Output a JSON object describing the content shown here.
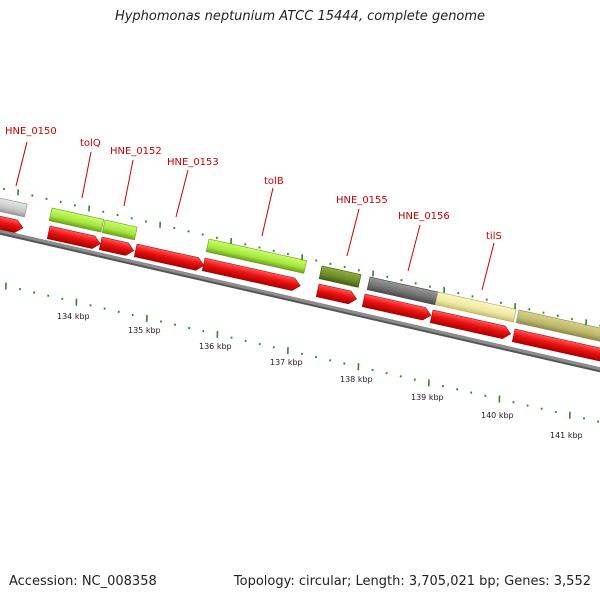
{
  "title": "Hyphomonas neptunium ATCC 15444, complete genome",
  "footer": {
    "accession": "Accession: NC_008358",
    "summary": "Topology: circular; Length: 3,705,021 bp; Genes: 3,552"
  },
  "colors": {
    "label": "#cc0000",
    "cds_arrow": "#ee1111",
    "tick": "#2a8a2a",
    "backbone": "#888888"
  },
  "gene_labels": [
    "HNE_0150",
    "tolQ",
    "HNE_0152",
    "HNE_0153",
    "tolB",
    "HNE_0155",
    "HNE_0156",
    "tilS"
  ],
  "scale_labels": [
    "134 kbp",
    "135 kbp",
    "136 kbp",
    "137 kbp",
    "138 kbp",
    "139 kbp",
    "140 kbp",
    "141 kbp"
  ],
  "feature_colors": {
    "unlabeled_left": "#c8c8c8",
    "tolQ": "#a4e63c",
    "HNE_0152": "#a4e63c",
    "tolB": "#a4e63c",
    "HNE_0155": "#6b8a2a",
    "HNE_0156": "#707070",
    "tilS": "#eee8a0",
    "right_edge": "#bdb76b"
  }
}
